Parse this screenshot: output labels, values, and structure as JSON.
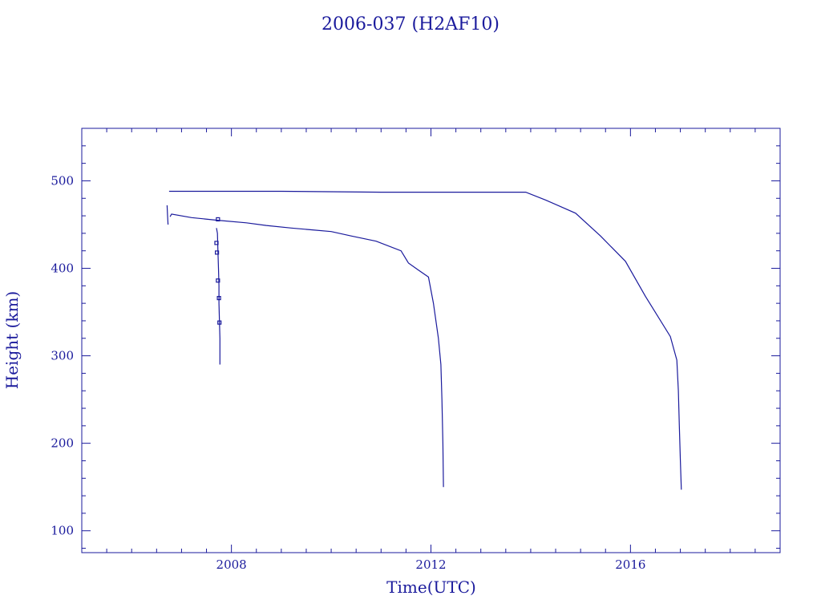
{
  "colors": {
    "ink": "#1a1a9c",
    "background": "#ffffff"
  },
  "chart_data": {
    "type": "line",
    "title": "2006-037 (H2AF10)",
    "xlabel": "Time(UTC)",
    "ylabel": "Height (km)",
    "xlim": [
      2005.0,
      2019.0
    ],
    "ylim": [
      75,
      560
    ],
    "x_ticks": [
      2008,
      2012,
      2016
    ],
    "x_tick_labels": [
      "2008",
      "2012",
      "2016"
    ],
    "y_ticks": [
      100,
      200,
      300,
      400,
      500
    ],
    "y_tick_labels": [
      "100",
      "200",
      "300",
      "400",
      "500"
    ],
    "grid": false,
    "series": [
      {
        "points": [
          [
            2007.7,
            446
          ],
          [
            2007.72,
            440
          ],
          [
            2007.73,
            420
          ],
          [
            2007.74,
            400
          ],
          [
            2007.75,
            380
          ],
          [
            2007.75,
            360
          ],
          [
            2007.76,
            340
          ],
          [
            2007.77,
            320
          ],
          [
            2007.77,
            290
          ]
        ]
      },
      {
        "points": [
          [
            2006.77,
            459
          ],
          [
            2006.8,
            462
          ],
          [
            2007.2,
            458
          ],
          [
            2007.7,
            455
          ],
          [
            2008.3,
            452
          ],
          [
            2008.7,
            449
          ],
          [
            2009.2,
            446
          ],
          [
            2009.6,
            444
          ],
          [
            2010.0,
            442
          ],
          [
            2010.4,
            437
          ],
          [
            2010.9,
            431
          ],
          [
            2011.4,
            420
          ],
          [
            2011.55,
            406
          ],
          [
            2011.75,
            398
          ],
          [
            2011.95,
            390
          ],
          [
            2012.05,
            360
          ],
          [
            2012.15,
            320
          ],
          [
            2012.2,
            290
          ],
          [
            2012.22,
            250
          ],
          [
            2012.24,
            200
          ],
          [
            2012.25,
            150
          ]
        ]
      },
      {
        "points": [
          [
            2006.75,
            488
          ],
          [
            2009.0,
            488
          ],
          [
            2011.0,
            487
          ],
          [
            2012.5,
            487
          ],
          [
            2013.9,
            487
          ],
          [
            2014.3,
            478
          ],
          [
            2014.9,
            463
          ],
          [
            2015.4,
            437
          ],
          [
            2015.9,
            408
          ],
          [
            2016.3,
            368
          ],
          [
            2016.8,
            322
          ],
          [
            2016.93,
            295
          ],
          [
            2016.96,
            260
          ],
          [
            2016.98,
            220
          ],
          [
            2017.0,
            180
          ],
          [
            2017.02,
            147
          ]
        ]
      },
      {
        "points": [
          [
            2006.71,
            472
          ],
          [
            2006.72,
            460
          ],
          [
            2006.73,
            450
          ]
        ]
      }
    ],
    "markers": [
      [
        2007.73,
        456
      ],
      [
        2007.7,
        429
      ],
      [
        2007.71,
        418
      ],
      [
        2007.73,
        386
      ],
      [
        2007.75,
        366
      ],
      [
        2007.76,
        338
      ]
    ]
  }
}
